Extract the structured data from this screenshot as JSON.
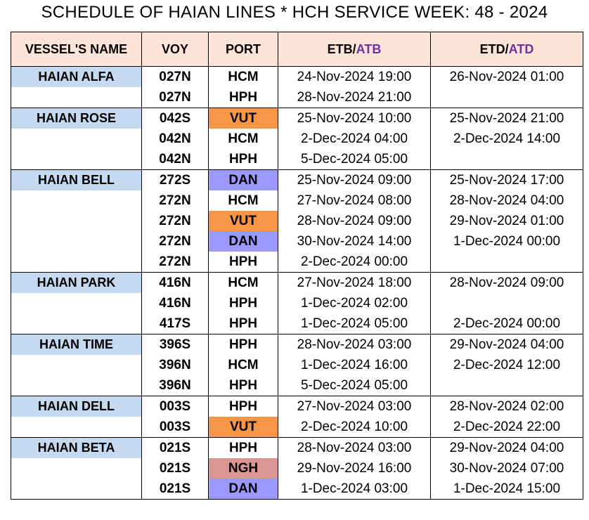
{
  "title": "SCHEDULE OF HAIAN LINES * HCH SERVICE WEEK: 48 - 2024",
  "headers": {
    "vessel": "VESSEL'S NAME",
    "voy": "VOY",
    "port": "PORT",
    "etb": "ETB/",
    "atb": "ATB",
    "etd": "ETD/",
    "atd": "ATD"
  },
  "colors": {
    "header_bg": "#fde4d6",
    "vessel_bg": "#c5d9f0",
    "accent_text": "#7030a0",
    "port_vut": "#f79646",
    "port_dan": "#9999ff",
    "port_ngh": "#da9694"
  },
  "rows": [
    {
      "vessel": "HAIAN ALFA",
      "voy": "027N",
      "port": "HCM",
      "etb": "24-Nov-2024 19:00",
      "etd": "26-Nov-2024 01:00"
    },
    {
      "vessel": "",
      "voy": "027N",
      "port": "HPH",
      "etb": "28-Nov-2024 21:00",
      "etd": ""
    },
    {
      "vessel": "HAIAN ROSE",
      "voy": "042S",
      "port": "VUT",
      "etb": "25-Nov-2024 10:00",
      "etd": "25-Nov-2024 21:00"
    },
    {
      "vessel": "",
      "voy": "042N",
      "port": "HCM",
      "etb": "2-Dec-2024 04:00",
      "etd": "2-Dec-2024 14:00"
    },
    {
      "vessel": "",
      "voy": "042N",
      "port": "HPH",
      "etb": "5-Dec-2024 05:00",
      "etd": ""
    },
    {
      "vessel": "HAIAN BELL",
      "voy": "272S",
      "port": "DAN",
      "etb": "25-Nov-2024 09:00",
      "etd": "25-Nov-2024 17:00"
    },
    {
      "vessel": "",
      "voy": "272N",
      "port": "HCM",
      "etb": "27-Nov-2024 08:00",
      "etd": "28-Nov-2024 04:00"
    },
    {
      "vessel": "",
      "voy": "272N",
      "port": "VUT",
      "etb": "28-Nov-2024 09:00",
      "etd": "29-Nov-2024 01:00"
    },
    {
      "vessel": "",
      "voy": "272N",
      "port": "DAN",
      "etb": "30-Nov-2024 14:00",
      "etd": "1-Dec-2024 00:00"
    },
    {
      "vessel": "",
      "voy": "272N",
      "port": "HPH",
      "etb": "2-Dec-2024 00:00",
      "etd": ""
    },
    {
      "vessel": "HAIAN PARK",
      "voy": "416N",
      "port": "HCM",
      "etb": "27-Nov-2024 18:00",
      "etd": "28-Nov-2024 09:00"
    },
    {
      "vessel": "",
      "voy": "416N",
      "port": "HPH",
      "etb": "1-Dec-2024 02:00",
      "etd": ""
    },
    {
      "vessel": "",
      "voy": "417S",
      "port": "HPH",
      "etb": "1-Dec-2024 05:00",
      "etd": "2-Dec-2024 00:00"
    },
    {
      "vessel": "HAIAN TIME",
      "voy": "396S",
      "port": "HPH",
      "etb": "28-Nov-2024 03:00",
      "etd": "29-Nov-2024 04:00"
    },
    {
      "vessel": "",
      "voy": "396N",
      "port": "HCM",
      "etb": "1-Dec-2024 16:00",
      "etd": "2-Dec-2024 12:00"
    },
    {
      "vessel": "",
      "voy": "396N",
      "port": "HPH",
      "etb": "5-Dec-2024 05:00",
      "etd": ""
    },
    {
      "vessel": "HAIAN DELL",
      "voy": "003S",
      "port": "HPH",
      "etb": "27-Nov-2024 03:00",
      "etd": "28-Nov-2024 02:00"
    },
    {
      "vessel": "",
      "voy": "003S",
      "port": "VUT",
      "etb": "2-Dec-2024 10:00",
      "etd": "2-Dec-2024 22:00"
    },
    {
      "vessel": "HAIAN BETA",
      "voy": "021S",
      "port": "HPH",
      "etb": "28-Nov-2024 03:00",
      "etd": "29-Nov-2024 04:00"
    },
    {
      "vessel": "",
      "voy": "021S",
      "port": "NGH",
      "etb": "29-Nov-2024 16:00",
      "etd": "30-Nov-2024 07:00"
    },
    {
      "vessel": "",
      "voy": "021S",
      "port": "DAN",
      "etb": "1-Dec-2024 03:00",
      "etd": "1-Dec-2024 15:00"
    }
  ]
}
